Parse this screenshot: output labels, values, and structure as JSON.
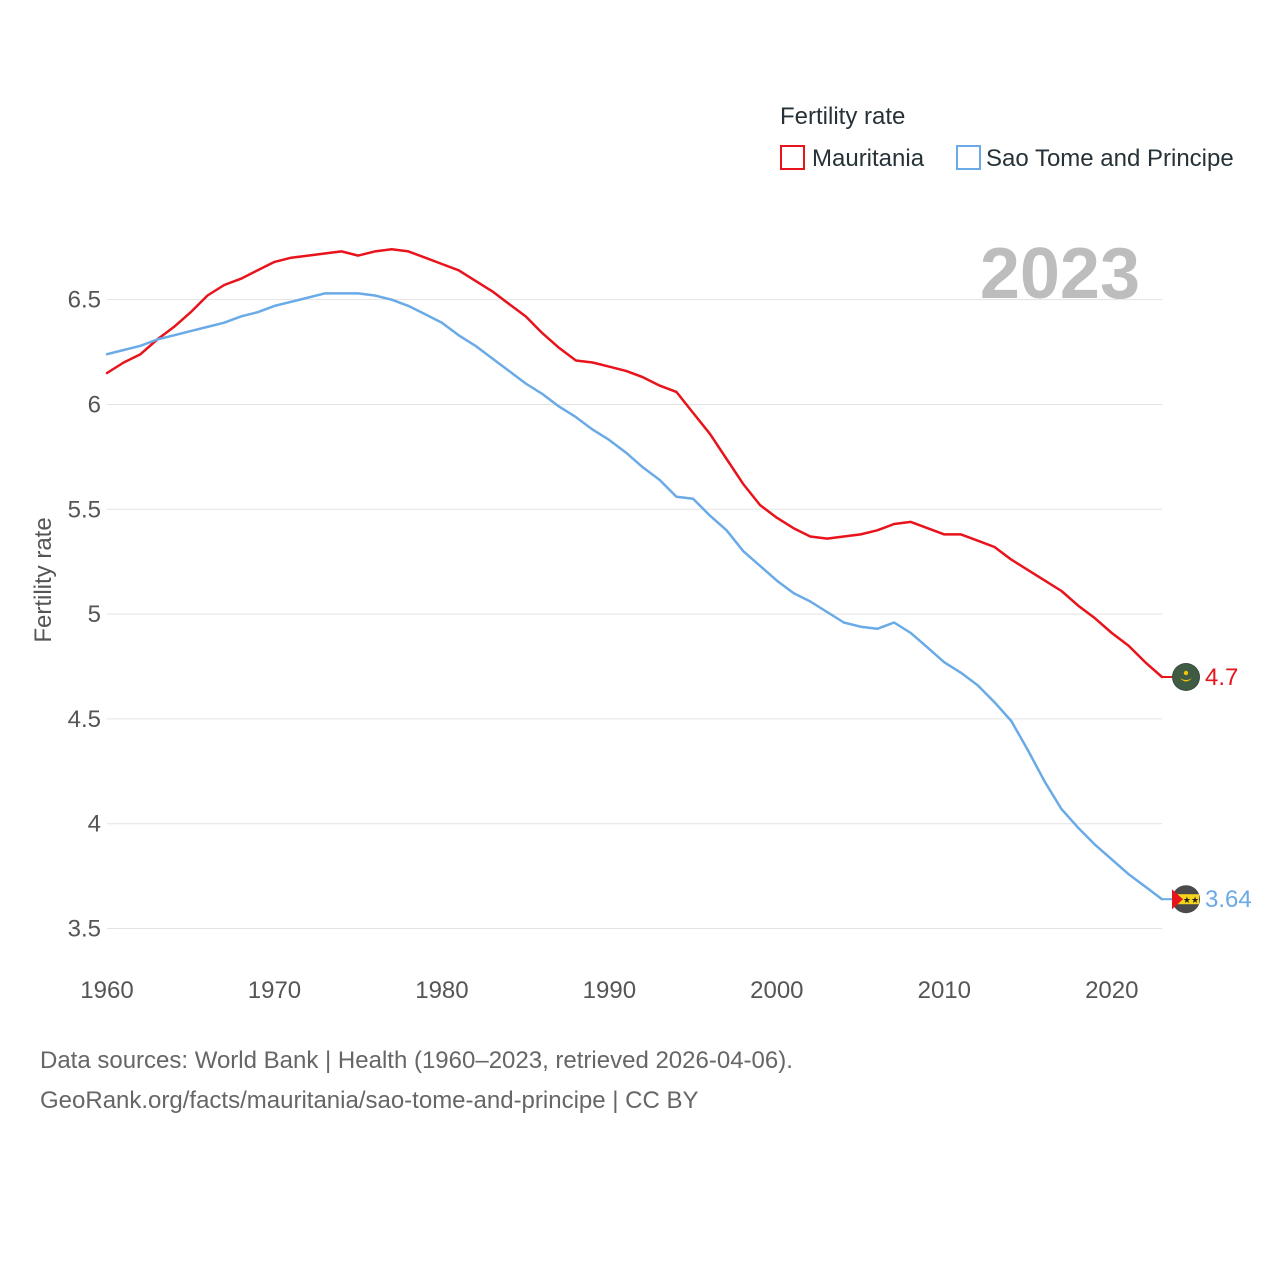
{
  "chart_data": {
    "type": "line",
    "title": "Fertility rate",
    "year_display": "2023",
    "ylabel": "Fertility rate",
    "xlabel": "",
    "xlim": [
      1960,
      2023
    ],
    "ylim": [
      3.35,
      6.88
    ],
    "x_ticks": [
      1960,
      1970,
      1980,
      1990,
      2000,
      2010,
      2020
    ],
    "x_tick_labels": [
      "1960",
      "1970",
      "1980",
      "1990",
      "2000",
      "2010",
      "2020"
    ],
    "y_ticks": [
      3.5,
      4,
      4.5,
      5,
      5.5,
      6,
      6.5
    ],
    "y_tick_labels": [
      "3.5",
      "4",
      "4.5",
      "5",
      "5.5",
      "6",
      "6.5"
    ],
    "grid": true,
    "legend_position": "top-right",
    "x": [
      1960,
      1961,
      1962,
      1963,
      1964,
      1965,
      1966,
      1967,
      1968,
      1969,
      1970,
      1971,
      1972,
      1973,
      1974,
      1975,
      1976,
      1977,
      1978,
      1979,
      1980,
      1981,
      1982,
      1983,
      1984,
      1985,
      1986,
      1987,
      1988,
      1989,
      1990,
      1991,
      1992,
      1993,
      1994,
      1995,
      1996,
      1997,
      1998,
      1999,
      2000,
      2001,
      2002,
      2003,
      2004,
      2005,
      2006,
      2007,
      2008,
      2009,
      2010,
      2011,
      2012,
      2013,
      2014,
      2015,
      2016,
      2017,
      2018,
      2019,
      2020,
      2021,
      2022,
      2023
    ],
    "series": [
      {
        "name": "Mauritania",
        "color": "#e8131b",
        "end_label": "4.7",
        "flag": "mauritania-flag",
        "values": [
          6.15,
          6.2,
          6.24,
          6.31,
          6.37,
          6.44,
          6.52,
          6.57,
          6.6,
          6.64,
          6.68,
          6.7,
          6.71,
          6.72,
          6.73,
          6.71,
          6.73,
          6.74,
          6.73,
          6.7,
          6.67,
          6.64,
          6.59,
          6.54,
          6.48,
          6.42,
          6.34,
          6.27,
          6.21,
          6.2,
          6.18,
          6.16,
          6.13,
          6.09,
          6.06,
          5.96,
          5.86,
          5.74,
          5.62,
          5.52,
          5.46,
          5.41,
          5.37,
          5.36,
          5.37,
          5.38,
          5.4,
          5.43,
          5.44,
          5.41,
          5.38,
          5.38,
          5.35,
          5.32,
          5.26,
          5.21,
          5.16,
          5.11,
          5.04,
          4.98,
          4.91,
          4.85,
          4.77,
          4.7
        ]
      },
      {
        "name": "Sao Tome and Principe",
        "color": "#6aaae6",
        "end_label": "3.64",
        "flag": "sao-tome-flag",
        "values": [
          6.24,
          6.26,
          6.28,
          6.31,
          6.33,
          6.35,
          6.37,
          6.39,
          6.42,
          6.44,
          6.47,
          6.49,
          6.51,
          6.53,
          6.53,
          6.53,
          6.52,
          6.5,
          6.47,
          6.43,
          6.39,
          6.33,
          6.28,
          6.22,
          6.16,
          6.1,
          6.05,
          5.99,
          5.94,
          5.88,
          5.83,
          5.77,
          5.7,
          5.64,
          5.56,
          5.55,
          5.47,
          5.4,
          5.3,
          5.23,
          5.16,
          5.1,
          5.06,
          5.01,
          4.96,
          4.94,
          4.93,
          4.96,
          4.91,
          4.84,
          4.77,
          4.72,
          4.66,
          4.58,
          4.49,
          4.35,
          4.2,
          4.07,
          3.98,
          3.9,
          3.83,
          3.76,
          3.7,
          3.64
        ]
      }
    ]
  },
  "source": {
    "line1": "Data sources: World Bank | Health (1960–2023, retrieved 2026-04-06).",
    "line2": "GeoRank.org/facts/mauritania/sao-tome-and-principe | CC BY"
  }
}
